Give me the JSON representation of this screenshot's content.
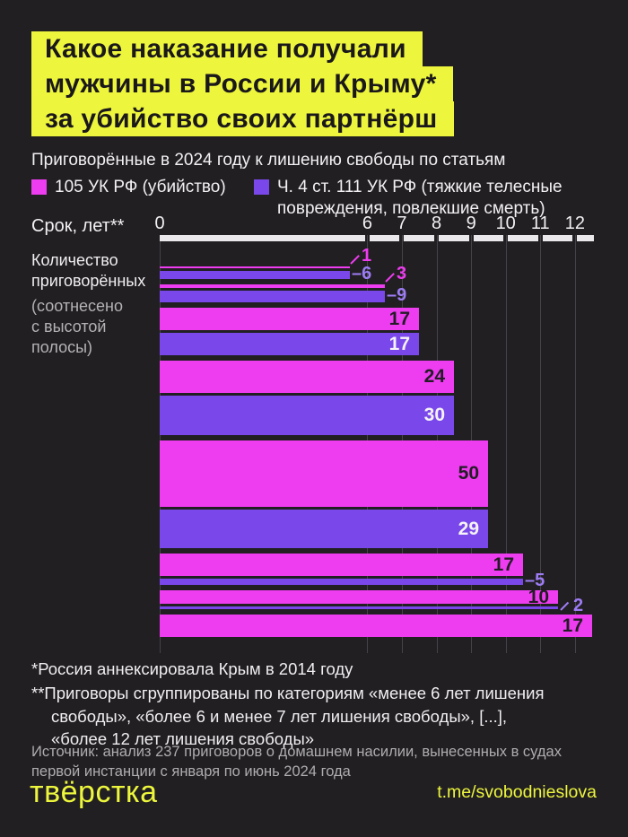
{
  "title": {
    "lines": [
      "Какое наказание получали",
      "мужчины в России и Крыму*",
      "за убийство своих партнёрш"
    ]
  },
  "subtitle": "Приговорённые в 2024 году к лишению свободы по статьям",
  "legend": [
    {
      "label": "105 УК РФ (убийство)",
      "color": "#ee3cf0"
    },
    {
      "label": "Ч. 4 ст. 111 УК РФ (тяжкие телесные\nповреждения, повлекшие смерть)",
      "color": "#7a47ea"
    }
  ],
  "side_note_1": "Количество\nприговорённых",
  "side_note_2": "(соотнесено\nс высотой\nполосы)",
  "chart_data": {
    "type": "bar",
    "orientation": "horizontal-grouped",
    "title": "Какое наказание получали мужчины в России и Крыму* за убийство своих партнёрш",
    "subtitle": "Приговорённые в 2024 году к лишению свободы по статьям",
    "xlabel": "Срок, лет**",
    "x_ticks": [
      0,
      6,
      7,
      8,
      9,
      10,
      11,
      12
    ],
    "x_range": [
      0,
      12.55
    ],
    "bar_height_note": "Количество приговорённых (соотнесено с высотой полосы)",
    "series": [
      {
        "name": "105 УК РФ (убийство)",
        "color": "#ee3cf0"
      },
      {
        "name": "Ч. 4 ст. 111 УК РФ (тяжкие телесные повреждения, повлекшие смерть)",
        "color": "#7a47ea"
      }
    ],
    "groups": [
      {
        "end_years": 5.5,
        "values": [
          1,
          6
        ]
      },
      {
        "end_years": 6.5,
        "values": [
          3,
          9
        ]
      },
      {
        "end_years": 7.5,
        "values": [
          17,
          17
        ]
      },
      {
        "end_years": 8.5,
        "values": [
          24,
          30
        ]
      },
      {
        "end_years": 9.5,
        "values": [
          50,
          29
        ]
      },
      {
        "end_years": 10.5,
        "values": [
          17,
          5
        ]
      },
      {
        "end_years": 11.5,
        "values": [
          10,
          2
        ]
      },
      {
        "end_years": 12.5,
        "values": [
          17,
          null
        ]
      }
    ]
  },
  "footnotes": {
    "fn1": "*Россия аннексировала Крым в 2014 году",
    "fn2": "**Приговоры сгруппированы по категориям «менее 6 лет лишения\nсвободы», «более 6 и менее 7 лет лишения свободы», [...],\n«более 12 лет лишения свободы»"
  },
  "source": "Источник: анализ 237 приговоров о домашнем насилии, вынесенных в судах\nпервой инстанции с января по июнь 2024 года",
  "footer": {
    "logo": "твёрстка",
    "link": "t.me/svobodnieslova"
  },
  "colors": {
    "background": "#211f22",
    "accent_yellow": "#edf63d",
    "magenta": "#ee3cf0",
    "purple": "#7a47ea",
    "purple_out_label": "#9d7cf4",
    "in_label_dark": "#221d24",
    "in_label_light": "#f5f3f7",
    "axis_line": "#eae8ea",
    "gridline": "#454249"
  }
}
